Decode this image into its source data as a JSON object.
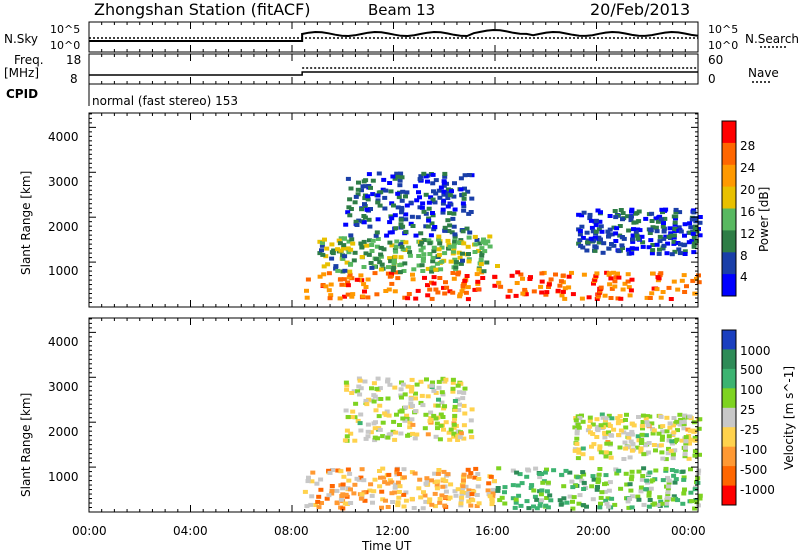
{
  "header": {
    "title": "Zhongshan Station (fitACF)",
    "beam": "Beam 13",
    "date": "20/Feb/2013"
  },
  "top_panels": {
    "nsky_label": "N.Sky",
    "nsky_ticks": [
      "10^5",
      "10^0"
    ],
    "nsearch_label": "N.Search",
    "nsearch_ticks": [
      "10^5",
      "10^0"
    ],
    "freq_label": "Freq.",
    "freq_unit": "[MHz]",
    "freq_ticks": [
      "18",
      "8"
    ],
    "nave_label": "Nave",
    "nave_ticks": [
      "60",
      "0"
    ],
    "cpid_label": "CPID",
    "cpid_text": "normal (fast stereo) 153",
    "data_start_hour": 8.4
  },
  "axes": {
    "ylabel": "Slant Range [km]",
    "yticks": [
      "4000",
      "3000",
      "2000",
      "1000"
    ],
    "xlabel": "Time UT",
    "xticks": [
      "00:00",
      "04:00",
      "08:00",
      "12:00",
      "16:00",
      "20:00",
      "00:00"
    ]
  },
  "colorbars": {
    "power": {
      "label": "Power [dB]",
      "ticks": [
        "28",
        "24",
        "20",
        "16",
        "12",
        "8",
        "4"
      ],
      "colors": [
        "#ff0000",
        "#ff6600",
        "#ff9900",
        "#e8c000",
        "#58b860",
        "#2e7d46",
        "#1a3fa8",
        "#0000ff"
      ]
    },
    "velocity": {
      "label": "Velocity [m s^-1]",
      "ticks": [
        "1000",
        "500",
        "100",
        "25",
        "-25",
        "-100",
        "-500",
        "-1000"
      ],
      "colors": [
        "#1a3fbf",
        "#2e8b57",
        "#3cb371",
        "#7ed321",
        "#c8c8c8",
        "#ffd24d",
        "#ff9933",
        "#ff6600",
        "#ff0000"
      ]
    }
  },
  "chart_data": [
    {
      "type": "heatmap",
      "name": "Power",
      "x_range_hours": [
        0,
        24
      ],
      "y_range_km": [
        180,
        4500
      ],
      "data_start_hour": 8.4,
      "ylabel": "Slant Range [km]",
      "clabel": "Power [dB]",
      "clim": [
        0,
        30
      ],
      "regions": [
        {
          "t0": 8.4,
          "t1": 24,
          "r0": 400,
          "r1": 1000,
          "value": 24
        },
        {
          "t0": 9,
          "t1": 16,
          "r0": 1000,
          "r1": 1800,
          "value": 12
        },
        {
          "t0": 10,
          "t1": 15,
          "r0": 1800,
          "r1": 3200,
          "value": 6
        },
        {
          "t0": 19,
          "t1": 24,
          "r0": 1400,
          "r1": 2400,
          "value": 6
        }
      ]
    },
    {
      "type": "heatmap",
      "name": "Velocity",
      "x_range_hours": [
        0,
        24
      ],
      "y_range_km": [
        180,
        4500
      ],
      "data_start_hour": 8.4,
      "ylabel": "Slant Range [km]",
      "clabel": "Velocity [m s^-1]",
      "clim": [
        -1000,
        1000
      ],
      "regions": [
        {
          "t0": 8.4,
          "t1": 16,
          "r0": 300,
          "r1": 1200,
          "value": -300
        },
        {
          "t0": 16,
          "t1": 24,
          "r0": 300,
          "r1": 1200,
          "value": 300
        },
        {
          "t0": 10,
          "t1": 15,
          "r0": 1800,
          "r1": 3200,
          "value": 0
        },
        {
          "t0": 19,
          "t1": 24,
          "r0": 1400,
          "r1": 2400,
          "value": 0
        }
      ]
    }
  ]
}
